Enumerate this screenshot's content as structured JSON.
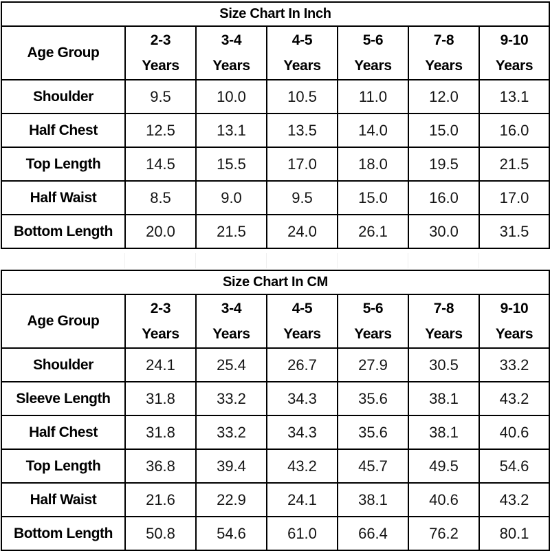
{
  "tables": [
    {
      "title": "Size Chart In Inch",
      "age_label": "Age Group",
      "age_groups": [
        {
          "range": "2-3",
          "unit": "Years"
        },
        {
          "range": "3-4",
          "unit": "Years"
        },
        {
          "range": "4-5",
          "unit": "Years"
        },
        {
          "range": "5-6",
          "unit": "Years"
        },
        {
          "range": "7-8",
          "unit": "Years"
        },
        {
          "range": "9-10",
          "unit": "Years"
        }
      ],
      "rows": [
        {
          "label": "Shoulder",
          "values": [
            "9.5",
            "10.0",
            "10.5",
            "11.0",
            "12.0",
            "13.1"
          ]
        },
        {
          "label": "Half Chest",
          "values": [
            "12.5",
            "13.1",
            "13.5",
            "14.0",
            "15.0",
            "16.0"
          ]
        },
        {
          "label": "Top Length",
          "values": [
            "14.5",
            "15.5",
            "17.0",
            "18.0",
            "19.5",
            "21.5"
          ]
        },
        {
          "label": "Half Waist",
          "values": [
            "8.5",
            "9.0",
            "9.5",
            "15.0",
            "16.0",
            "17.0"
          ]
        },
        {
          "label": "Bottom Length",
          "values": [
            "20.0",
            "21.5",
            "24.0",
            "26.1",
            "30.0",
            "31.5"
          ]
        }
      ]
    },
    {
      "title": "Size Chart In CM",
      "age_label": "Age Group",
      "age_groups": [
        {
          "range": "2-3",
          "unit": "Years"
        },
        {
          "range": "3-4",
          "unit": "Years"
        },
        {
          "range": "4-5",
          "unit": "Years"
        },
        {
          "range": "5-6",
          "unit": "Years"
        },
        {
          "range": "7-8",
          "unit": "Years"
        },
        {
          "range": "9-10",
          "unit": "Years"
        }
      ],
      "rows": [
        {
          "label": "Shoulder",
          "values": [
            "24.1",
            "25.4",
            "26.7",
            "27.9",
            "30.5",
            "33.2"
          ]
        },
        {
          "label": "Sleeve Length",
          "values": [
            "31.8",
            "33.2",
            "34.3",
            "35.6",
            "38.1",
            "43.2"
          ]
        },
        {
          "label": "Half Chest",
          "values": [
            "31.8",
            "33.2",
            "34.3",
            "35.6",
            "38.1",
            "40.6"
          ]
        },
        {
          "label": "Top Length",
          "values": [
            "36.8",
            "39.4",
            "43.2",
            "45.7",
            "49.5",
            "54.6"
          ]
        },
        {
          "label": "Half Waist",
          "values": [
            "21.6",
            "22.9",
            "24.1",
            "38.1",
            "40.6",
            "43.2"
          ]
        },
        {
          "label": "Bottom Length",
          "values": [
            "50.8",
            "54.6",
            "61.0",
            "66.4",
            "76.2",
            "80.1"
          ]
        }
      ]
    }
  ]
}
